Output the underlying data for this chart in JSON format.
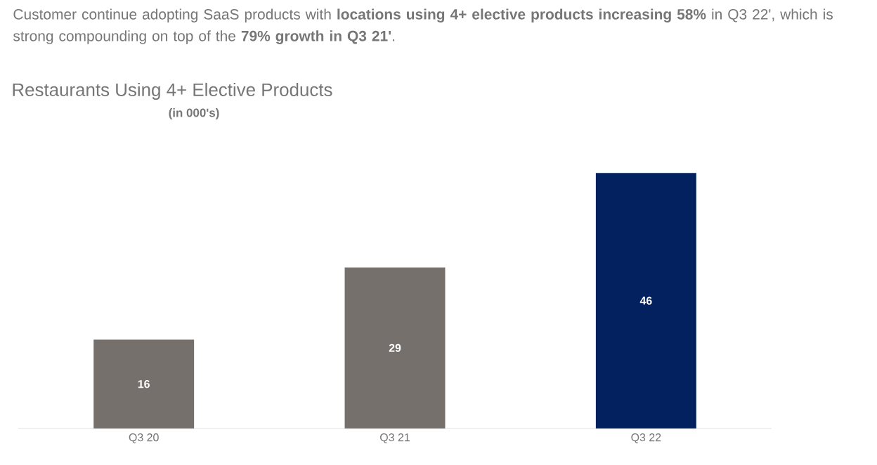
{
  "chart_data": {
    "type": "bar",
    "title": "Restaurants Using 4+ Elective Products",
    "subtitle": "(in 000's)",
    "annotations": [
      "Customer continue adopting SaaS products with **locations using 4+ elective products increasing 58%** in Q3 22', which is strong compounding on top of the **79% growth in Q3 21'**."
    ],
    "categories": [
      "Q3 20",
      "Q3 21",
      "Q3 22"
    ],
    "values": [
      16,
      29,
      46
    ],
    "colors": [
      "#76706d",
      "#76706d",
      "#03215e"
    ],
    "data_labels": true
  }
}
